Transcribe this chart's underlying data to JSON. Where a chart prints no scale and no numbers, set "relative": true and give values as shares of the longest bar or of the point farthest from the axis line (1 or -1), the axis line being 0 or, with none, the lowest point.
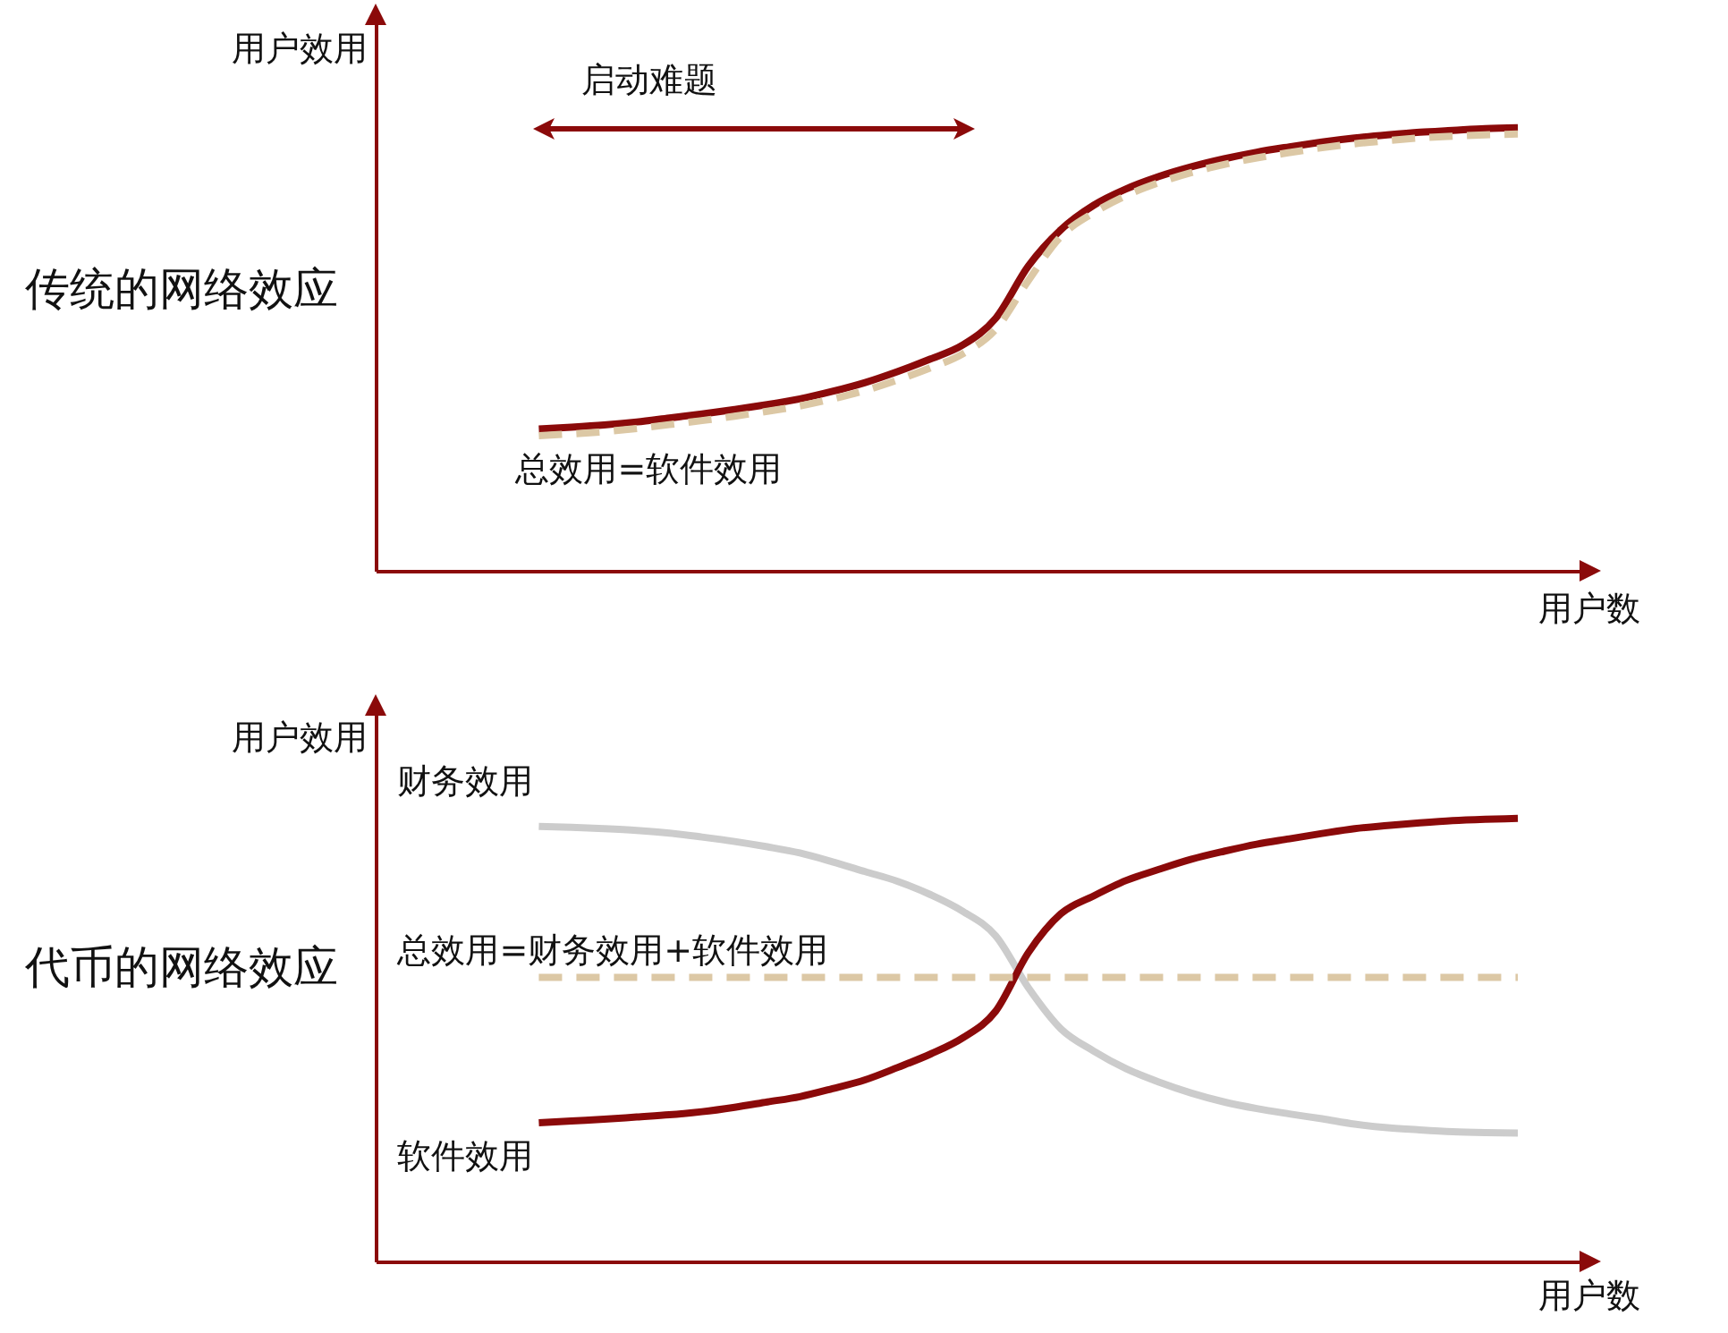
{
  "chart_data": [
    {
      "type": "line",
      "title": "传统的网络效应",
      "xlabel": "用户数",
      "ylabel": "用户效用",
      "relative": true,
      "annotations": [
        "启动难题"
      ],
      "categories": [
        null,
        null,
        null,
        null,
        null,
        null,
        null,
        null,
        null,
        null,
        null,
        null,
        null,
        null,
        null,
        null,
        null,
        null,
        null,
        null,
        null,
        null,
        null,
        null,
        null,
        null,
        null,
        null,
        null,
        null,
        null,
        null,
        null,
        null,
        null,
        null,
        null,
        null
      ],
      "series": [
        {
          "color": "#8b0a0a",
          "values": [
            null,
            null,
            null,
            null,
            null,
            0.32,
            0.324,
            0.329,
            0.336,
            0.345,
            0.354,
            0.364,
            0.375,
            0.388,
            0.405,
            0.425,
            0.45,
            0.478,
            0.51,
            0.57,
            0.688,
            0.77,
            0.825,
            0.862,
            0.89,
            0.912,
            0.93,
            0.945,
            0.957,
            0.968,
            0.977,
            0.984,
            0.99,
            0.994,
            0.998,
            1,
            null,
            null
          ]
        },
        {
          "name": "总效用=软件效用",
          "color": "#dcc8a5",
          "line_style": "dashed",
          "values": [
            null,
            null,
            null,
            null,
            null,
            0.305,
            0.309,
            0.314,
            0.321,
            0.33,
            0.339,
            0.349,
            0.36,
            0.372,
            0.388,
            0.407,
            0.431,
            0.458,
            0.49,
            0.545,
            0.655,
            0.755,
            0.808,
            0.847,
            0.876,
            0.899,
            0.917,
            0.932,
            0.944,
            0.955,
            0.964,
            0.971,
            0.977,
            0.981,
            0.984,
            0.986,
            null,
            null
          ]
        }
      ]
    },
    {
      "type": "line",
      "title": "代币的网络效应",
      "xlabel": "用户数",
      "ylabel": "用户效用",
      "relative": true,
      "categories": [
        null,
        null,
        null,
        null,
        null,
        null,
        null,
        null,
        null,
        null,
        null,
        null,
        null,
        null,
        null,
        null,
        null,
        null,
        null,
        null,
        null,
        null,
        null,
        null,
        null,
        null,
        null,
        null,
        null,
        null,
        null,
        null,
        null,
        null,
        null,
        null,
        null,
        null
      ],
      "series": [
        {
          "name": "财务效用",
          "color": "#cccccc",
          "values": [
            null,
            null,
            null,
            null,
            null,
            0.982,
            0.98,
            0.977,
            0.973,
            0.967,
            0.958,
            0.948,
            0.936,
            0.922,
            0.902,
            0.88,
            0.858,
            0.828,
            0.79,
            0.735,
            0.618,
            0.525,
            0.475,
            0.435,
            0.405,
            0.38,
            0.36,
            0.345,
            0.333,
            0.322,
            0.31,
            0.302,
            0.297,
            0.293,
            0.291,
            0.29,
            null,
            null
          ]
        },
        {
          "name": "软件效用",
          "color": "#8b0a0a",
          "values": [
            null,
            null,
            null,
            null,
            null,
            0.313,
            0.317,
            0.321,
            0.326,
            0.331,
            0.338,
            0.348,
            0.36,
            0.372,
            0.39,
            0.41,
            0.438,
            0.468,
            0.505,
            0.565,
            0.697,
            0.785,
            0.825,
            0.86,
            0.885,
            0.908,
            0.926,
            0.942,
            0.954,
            0.966,
            0.977,
            0.984,
            0.99,
            0.995,
            0.998,
            1,
            null,
            null
          ]
        },
        {
          "name": "总效用=财务效用+软件效用",
          "color": "#dcc8a5",
          "line_style": "dashed",
          "values": [
            null,
            null,
            null,
            null,
            null,
            0.641,
            0.641,
            0.641,
            0.641,
            0.641,
            0.641,
            0.641,
            0.641,
            0.641,
            0.641,
            0.641,
            0.641,
            0.641,
            0.641,
            0.641,
            0.641,
            0.641,
            0.641,
            0.641,
            0.641,
            0.641,
            0.641,
            0.641,
            0.641,
            0.641,
            0.641,
            0.641,
            0.641,
            0.641,
            0.641,
            0.641,
            null,
            null
          ]
        }
      ]
    }
  ]
}
